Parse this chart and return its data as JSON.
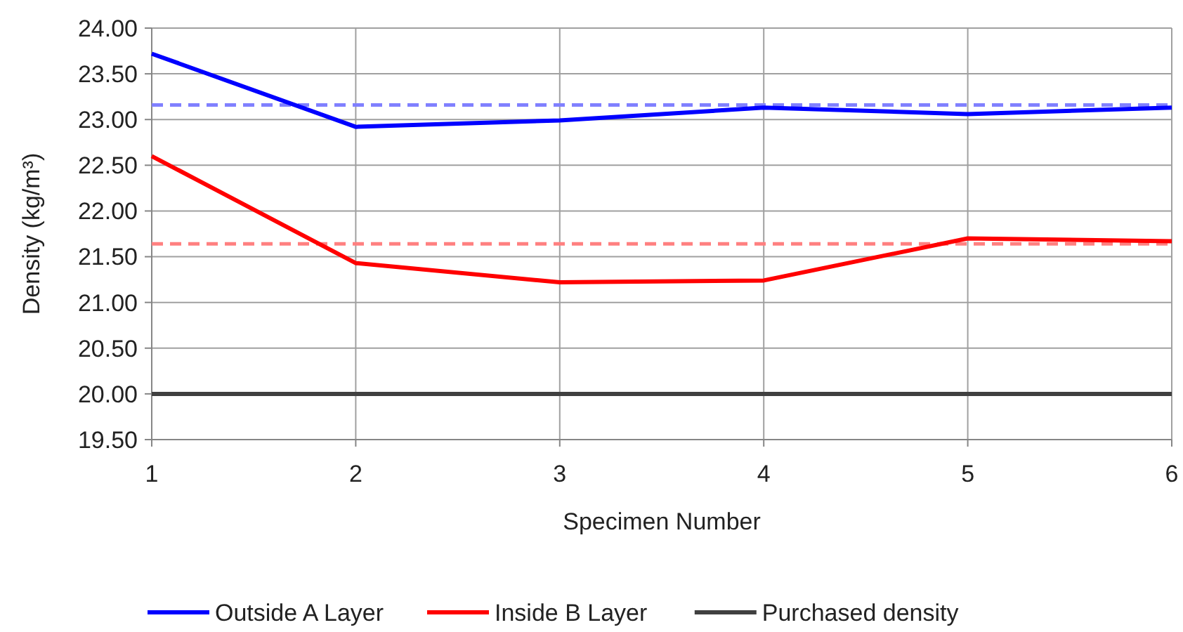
{
  "chart_data": {
    "type": "line",
    "xlabel": "Specimen Number",
    "ylabel": "Density (kg/m³)",
    "x": [
      1,
      2,
      3,
      4,
      5,
      6
    ],
    "series": [
      {
        "name": "Outside A Layer",
        "color": "#0000ff",
        "values": [
          23.72,
          22.92,
          22.99,
          23.13,
          23.06,
          23.13
        ]
      },
      {
        "name": "Inside B Layer",
        "color": "#ff0000",
        "values": [
          22.6,
          21.43,
          21.22,
          21.24,
          21.7,
          21.67
        ]
      },
      {
        "name": "Purchased density",
        "color": "#404040",
        "values": [
          20,
          20,
          20,
          20,
          20,
          20
        ]
      }
    ],
    "ref_lines": [
      {
        "axis": "y",
        "value": 23.16,
        "color": "#8080ff",
        "line_style": "dashed"
      },
      {
        "axis": "y",
        "value": 21.64,
        "color": "#ff8080",
        "line_style": "dashed"
      }
    ],
    "xlim": [
      1,
      6
    ],
    "xticks": [
      1,
      2,
      3,
      4,
      5,
      6
    ],
    "ylim": [
      19.5,
      24
    ],
    "yticks": [
      {
        "value": 19.5,
        "label": "19.50"
      },
      {
        "value": 20,
        "label": "20.00"
      },
      {
        "value": 20.5,
        "label": "20.50"
      },
      {
        "value": 21,
        "label": "21.00"
      },
      {
        "value": 21.5,
        "label": "21.50"
      },
      {
        "value": 22,
        "label": "22.00"
      },
      {
        "value": 22.5,
        "label": "22.50"
      },
      {
        "value": 23,
        "label": "23.00"
      },
      {
        "value": 23.5,
        "label": "23.50"
      },
      {
        "value": 24,
        "label": "24.00"
      }
    ],
    "grid": true,
    "legend": "bottom",
    "marker": "none",
    "line_style": "solid"
  }
}
